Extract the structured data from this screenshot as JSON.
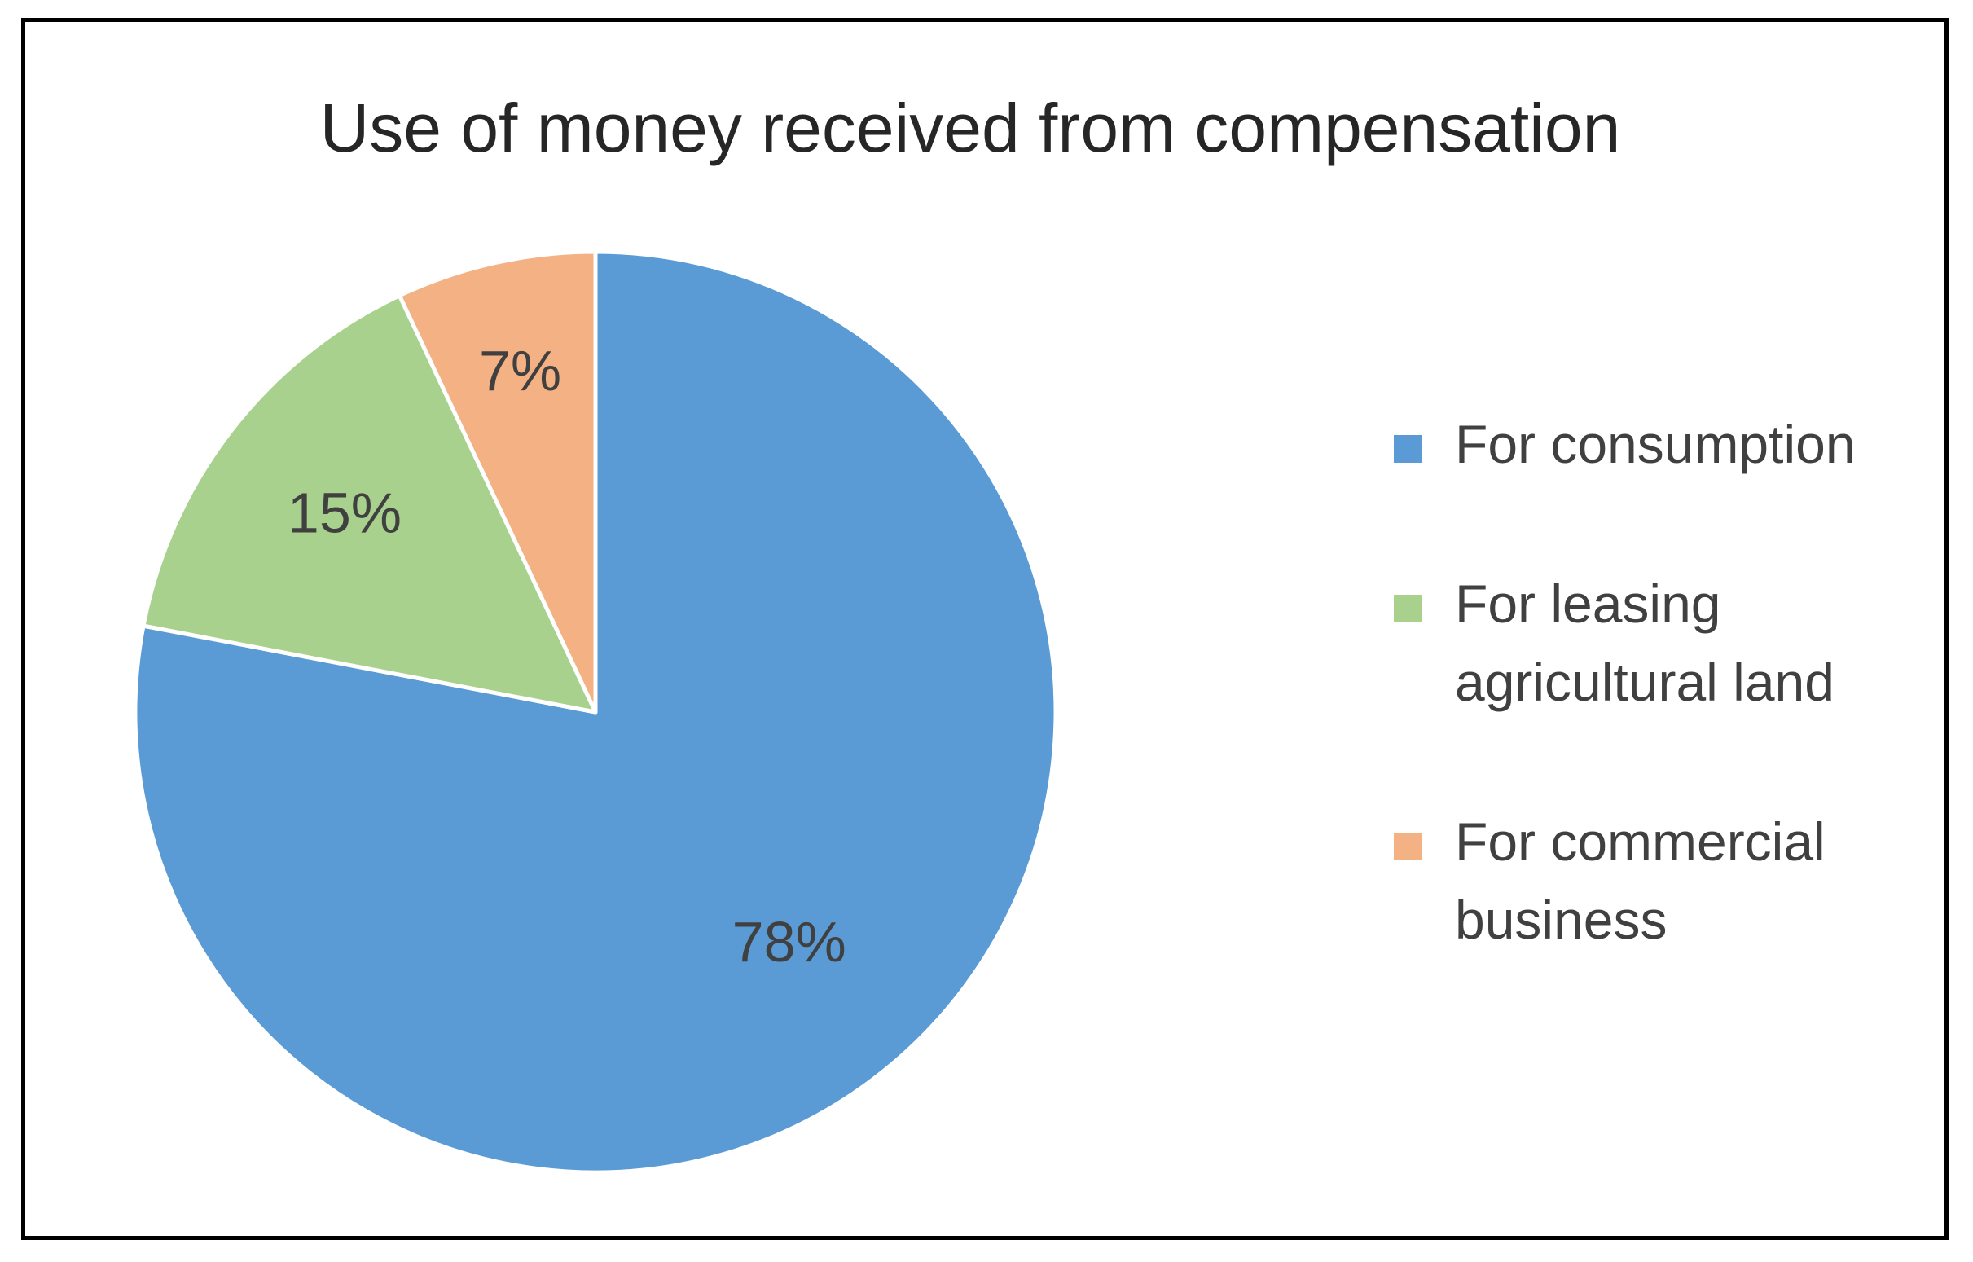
{
  "chart_data": {
    "type": "pie",
    "title": "Use of money received from compensation",
    "categories": [
      "For consumption",
      "For leasing agricultural land",
      "For commercial business"
    ],
    "values": [
      78,
      15,
      7
    ],
    "data_labels": [
      "78%",
      "15%",
      "7%"
    ],
    "colors": [
      "#5B9BD5",
      "#A9D18E",
      "#F4B183"
    ],
    "legend_placement": "right",
    "start_angle": "12 o'clock, clockwise"
  },
  "legend": {
    "items": [
      {
        "label": "For consumption",
        "color": "#5B9BD5"
      },
      {
        "label": "For leasing agricultural land",
        "color": "#A9D18E"
      },
      {
        "label": "For commercial business",
        "color": "#F4B183"
      }
    ]
  }
}
